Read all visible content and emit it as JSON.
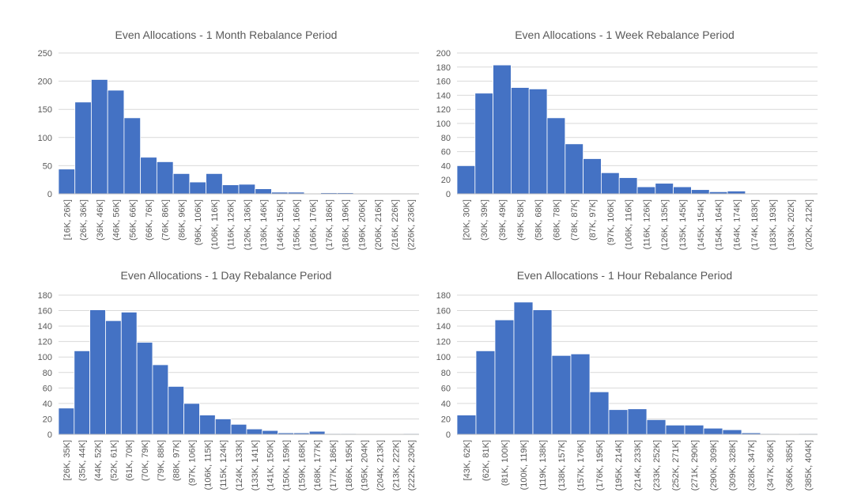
{
  "chart_data": [
    {
      "type": "bar",
      "title": "Even Allocations - 1 Month Rebalance Period",
      "categories": [
        "[16K, 26K]",
        "(26K, 36K]",
        "(36K, 46K]",
        "(46K, 56K]",
        "(56K, 66K]",
        "(66K, 76K]",
        "(76K, 86K]",
        "(86K, 96K]",
        "(96K, 106K]",
        "(106K, 116K]",
        "(116K, 126K]",
        "(126K, 136K]",
        "(136K, 146K]",
        "(146K, 156K]",
        "(156K, 166K]",
        "(166K, 176K]",
        "(176K, 186K]",
        "(186K, 196K]",
        "(196K, 206K]",
        "(206K, 216K]",
        "(216K, 226K]",
        "(226K, 236K]"
      ],
      "values": [
        44,
        163,
        203,
        184,
        135,
        65,
        57,
        36,
        21,
        36,
        16,
        17,
        9,
        3,
        3,
        1,
        2,
        2,
        1,
        0,
        0,
        1
      ],
      "yticks": [
        0,
        50,
        100,
        150,
        200,
        250
      ],
      "ylim": [
        0,
        250
      ],
      "xlabel": "",
      "ylabel": "",
      "grid": true
    },
    {
      "type": "bar",
      "title": "Even Allocations - 1 Week Rebalance Period",
      "categories": [
        "[20K, 30K]",
        "(30K, 39K]",
        "(39K, 49K]",
        "(49K, 58K]",
        "(58K, 68K]",
        "(68K, 78K]",
        "(78K, 87K]",
        "(87K, 97K]",
        "(97K, 106K]",
        "(106K, 116K]",
        "(116K, 126K]",
        "(126K, 135K]",
        "(135K, 145K]",
        "(145K, 154K]",
        "(154K, 164K]",
        "(164K, 174K]",
        "(174K, 183K]",
        "(183K, 193K]",
        "(193K, 202K]",
        "(202K, 212K]"
      ],
      "values": [
        40,
        143,
        183,
        151,
        149,
        108,
        71,
        50,
        30,
        23,
        10,
        15,
        10,
        6,
        3,
        4,
        1,
        1,
        0,
        1
      ],
      "yticks": [
        0,
        20,
        40,
        60,
        80,
        100,
        120,
        140,
        160,
        180,
        200
      ],
      "ylim": [
        0,
        200
      ],
      "xlabel": "",
      "ylabel": "",
      "grid": true
    },
    {
      "type": "bar",
      "title": "Even Allocations - 1 Day Rebalance Period",
      "categories": [
        "[26K, 35K]",
        "(35K, 44K]",
        "(44K, 52K]",
        "(52K, 61K]",
        "(61K, 70K]",
        "(70K, 79K]",
        "(79K, 88K]",
        "(88K, 97K]",
        "(97K, 106K]",
        "(106K, 115K]",
        "(115K, 124K]",
        "(124K, 133K]",
        "(133K, 141K]",
        "(141K, 150K]",
        "(150K, 159K]",
        "(159K, 168K]",
        "(168K, 177K]",
        "(177K, 186K]",
        "(186K, 195K]",
        "(195K, 204K]",
        "(204K, 213K]",
        "(213K, 222K]",
        "(222K, 230K]"
      ],
      "values": [
        34,
        108,
        161,
        147,
        158,
        119,
        90,
        62,
        40,
        25,
        20,
        13,
        7,
        5,
        2,
        2,
        4,
        1,
        1,
        0,
        0,
        0,
        1
      ],
      "yticks": [
        0,
        20,
        40,
        60,
        80,
        100,
        120,
        140,
        160,
        180
      ],
      "ylim": [
        0,
        180
      ],
      "xlabel": "",
      "ylabel": "",
      "grid": true
    },
    {
      "type": "bar",
      "title": "Even Allocations - 1 Hour Rebalance Period",
      "categories": [
        "[43K, 62K]",
        "(62K, 81K]",
        "(81K, 100K]",
        "(100K, 119K]",
        "(119K, 138K]",
        "(138K, 157K]",
        "(157K, 176K]",
        "(176K, 195K]",
        "(195K, 214K]",
        "(214K, 233K]",
        "(233K, 252K]",
        "(252K, 271K]",
        "(271K, 290K]",
        "(290K, 309K]",
        "(309K, 328K]",
        "(328K, 347K]",
        "(347K, 366K]",
        "(366K, 385K]",
        "(385K, 404K]"
      ],
      "values": [
        25,
        108,
        148,
        171,
        161,
        102,
        104,
        55,
        32,
        33,
        19,
        12,
        12,
        8,
        6,
        2,
        1,
        0,
        1
      ],
      "yticks": [
        0,
        20,
        40,
        60,
        80,
        100,
        120,
        140,
        160,
        180
      ],
      "ylim": [
        0,
        180
      ],
      "xlabel": "",
      "ylabel": "",
      "grid": true
    }
  ],
  "colors": {
    "bar": "#4472C4",
    "grid": "#d9d9d9",
    "text": "#595959"
  }
}
